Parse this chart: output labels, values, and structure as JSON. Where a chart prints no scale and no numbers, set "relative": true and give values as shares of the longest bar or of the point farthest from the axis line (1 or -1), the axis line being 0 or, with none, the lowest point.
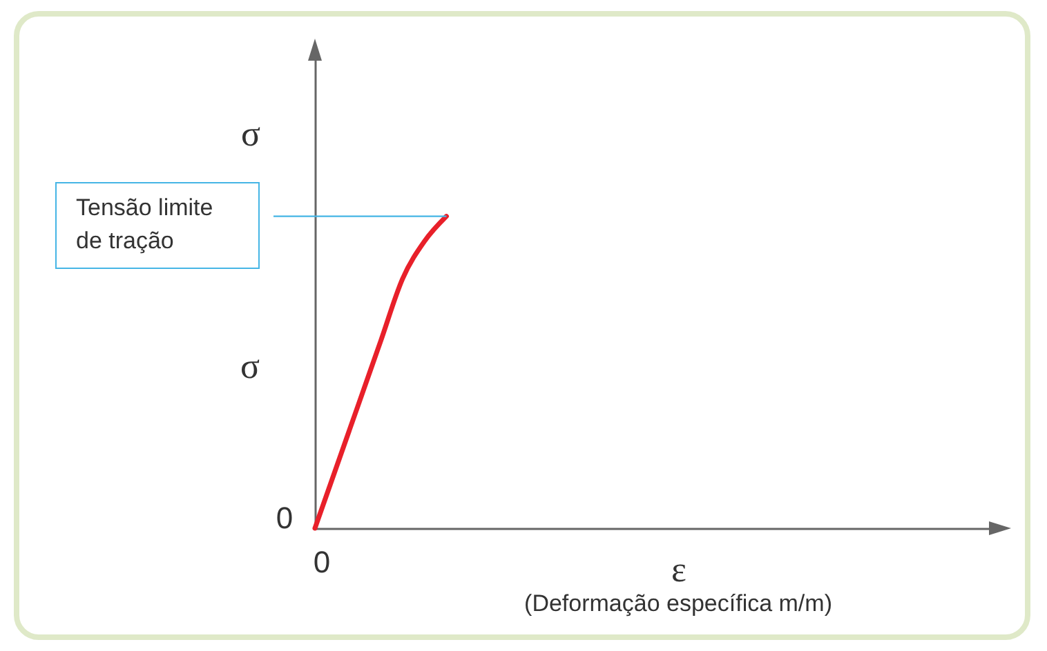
{
  "chart_data": {
    "type": "line",
    "relative": true,
    "categories": [
      null,
      null,
      null,
      null,
      null,
      null,
      null,
      null,
      null,
      null,
      null,
      null,
      null,
      null,
      null,
      null,
      null,
      null,
      null,
      null,
      null,
      null,
      null,
      null,
      null,
      null,
      null,
      null,
      null,
      null,
      null,
      null
    ],
    "series": [
      {
        "color": "#e8202a",
        "values": [
          0,
          0.2,
          0.4,
          0.6,
          0.8,
          0.92,
          1,
          null,
          null,
          null,
          null,
          null,
          null,
          null,
          null,
          null,
          null,
          null,
          null,
          null,
          null,
          null,
          null,
          null,
          null,
          null,
          null,
          null,
          null,
          null,
          null,
          null
        ]
      }
    ],
    "xlabel": "ε",
    "ylabel": "σ",
    "annotations": [
      "σ",
      "0",
      "0",
      "(Deformação específica m/m)"
    ],
    "ref_lines": [
      {
        "axis": "y",
        "value": 1,
        "label": "Tensão limite de tração",
        "color": "#45b5e5"
      }
    ],
    "line_style": "solid"
  }
}
